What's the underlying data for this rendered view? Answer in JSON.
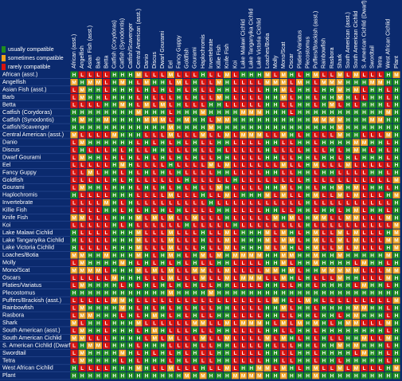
{
  "legend": [
    {
      "label": "usually compatible",
      "color": "#1f8d1f"
    },
    {
      "label": "sometimes compatible",
      "color": "#f0a21e"
    },
    {
      "label": "rarely compatible",
      "color": "#d9140f"
    }
  ],
  "cell_colors": {
    "H": "#1f8d1f",
    "M": "#f0a21e",
    "L": "#d9140f"
  },
  "columns": [
    "African (asst.)",
    "Angelfish",
    "Asian Fish (asst.)",
    "Barb",
    "Betta",
    "Catfish (Corydoras)",
    "Catfish (Synodontis)",
    "Catfish/Scavenger",
    "Central American (asst.)",
    "Danio",
    "Discus",
    "Dwarf Gourami",
    "Eel",
    "Fancy Guppy",
    "Goldfish",
    "Gourami",
    "Haplochromis",
    "Invertebrate",
    "Killie Fish",
    "Knife Fish",
    "Koi",
    "Lake Malawi Cichlid",
    "Lake Tanganyika Cichlid",
    "Lake Victoria Cichlid",
    "Loaches/Botia",
    "Molly",
    "Mono/Scat",
    "Oscar",
    "Platies/Variatus",
    "Plecostomus",
    "Puffers/Brackish (asst.)",
    "Rainbowfish",
    "Rasbora",
    "Shark",
    "South American (asst.)",
    "South American Cichlid",
    "S. American Cichlid (Dwarf)",
    "Swordtail",
    "Tetra",
    "West African Cichlid",
    "Plant"
  ],
  "rows": [
    "African (asst.)",
    "Angelfish",
    "Asian Fish (asst.)",
    "Barb",
    "Betta",
    "Catfish (Corydoras)",
    "Catfish (Synodontis)",
    "Catfish/Scavenger",
    "Central American (asst.)",
    "Danio",
    "Discus",
    "Dwarf Gourami",
    "Eel",
    "Fancy Guppy",
    "Goldfish",
    "Gourami",
    "Haplochromis",
    "Invertebrate",
    "Killie Fish",
    "Knife Fish",
    "Koi",
    "Lake Malawi Cichlid",
    "Lake Tanganyika Cichlid",
    "Lake Victoria Cichlid",
    "Loaches/Botia",
    "Molly",
    "Mono/Scat",
    "Oscars",
    "Platies/Variatus",
    "Plecostomus",
    "Puffers/Brackish (asst.)",
    "Rainbowfish",
    "Rasbora",
    "Shark",
    "South American (asst.)",
    "South American Cichlid",
    "S. American Cichlid (Dwarf)",
    "Swordtail",
    "Tetra",
    "West African Cichlid",
    "Plant"
  ],
  "grid": [
    "HLLLLHHHMLLLMLLLHLLMLHHHMLMHLHMLLMLMLLLHM",
    "MHMMLHMHLMHHLMLHLLMHLLLLMMMLMHLMMMHHHMMHH",
    "LMHHLHHHLHLHLHLHLLHHLLLLHHMLHHLHHMHMLHHLH",
    "LMHHLHHHLHLLLHLHLLMHLLLLHHMLHHLHHMHLLHHLH",
    "LLLLHHMHLMLMLHLLLHHLLLLLHHLLHHLHMLHLHHHLH",
    "HHHHHHHHMHHHLHHHMHHHHMMMHHHLHHHHHHHHHHHMH",
    "HMHHMHHHHMMMLHMHHLMMHHHHHHHHHHMMMMHHHMMHH",
    "HHHHHHHHHHHHMHHHHMHHHHHHHHHHHHHHHMHHHHHHH",
    "MLLLLMHHHLLLMLLLMLLMLMMMLLMHLHLLLMHHLLLMH",
    "LMHHHHHHLHLHLHLHLLHHLLLLHHLLHHLHHHHMMHHLH",
    "LHLLLHLHLLHHLLLHLLHLLLLLHLLLLHLLHLHMHLHLH",
    "LMHHLHLHLHLHLHLHLLHHLLLLHHLLHHLHHLHLHHHLH",
    "LLLLLHMHLLLLHLLLLMLMLLLLLLMLLHMLLLMLLLLLH",
    "LLMLHHLHLHLHLHLLLLHHLLLLHHLLHHLHHLLLLHHLH",
    "LLLLLHLHLLLLLLHLLLLLHLLLLLLLLHLLLLLLLLLLM",
    "LMHHLHHHLHLHLHLHLLMHLLLLHHMLHHLHHMHMLHHLH",
    "HLLLLHHHLLLLMLLLHLLMLHHHMLMLLHMLLMLMLLLHM",
    "LLLLMHLHLLLLLLLLLHLLLLLLLLLLLHLLLLLLLLLLH",
    "LLLLHHLHLHLHLHLLLLHHLLLLHHLLHHLHHLHMLHHLH",
    "MMLLLHHHMLMLMLLMLLLHLLLLLMHMLHMMLLMMLLLMH",
    "LLLLLHLHLLLLLLHLLLLLHLLLLLLLLHLLLLLLLLLLM",
    "HLLLLHHHMLLLMLLLHLLMLHHHMLMHLHMLLMLMLLLHM",
    "HLLLLHHHMLLLMLLLHLLMLHHHMLMMLHMLLMLMLLLMM",
    "HLLLLHHHMLLLMLLLHLLMLHHHMLMHLHMLLMLMLLLHM",
    "MMHHMHHHMHLHMHLHMLMHMMMMHHMMHHMHHMHHHHHMH",
    "LMHHHHMHLHLHLHLHLLHHLLLLHHMLHHMHHHHLMHHLH",
    "MMMMLHHHMLMLMLLMMLLMLLLLMMHMLHHMMMMMLLLMM",
    "LLLLLMHHHLLLMLLLMLLMLMMMLLMHLHLLLMHHLLLMH",
    "LMHHHHLHLHLHLHLHLLHHLLLLHHLLHHLHHHHLMHHLH",
    "HHHHHHHHHHHHMHHHHMHHHHHHHHHHHHHHHHHHHHHHH",
    "LLLLLMMHLLLLLLLLLLLLLLLLLMHLLMHLLLLLLLLLM",
    "LMHHHHMHLHLHLHLHLLHHLLLLHHMLHHLHHHHMMHHLH",
    "LMMHHHLHLHMHLHLHLLHHLLLLHHLLHHLHHLHMHHHLH",
    "MLHHLHHHMLLLLLLMMLLMLMMMHLMLMHMHLHMMLLLMH",
    "LMHHLHHHLHMHLLLHLLHHLLLLHHLLHHLHHHHHHHHLH",
    "MMLLLHHHHLMLMLLLMLLMLLLLMLMHLHLHLLHHMLLMH",
    "LHMMLHHHLHHHLLLHLLHHLLLLHLLLHHLHHMHMHHHLH",
    "LMHHHHMHLHLHLHLHLLHHLLLLHHLLHHLHHHHLMHHLH",
    "LMHHHHLHLHHHLHLHLLHHLLLLHHLLHHLHHLHHHHHLH",
    "HLLLLHHHMHLLMLLLHLLMLHHMMLMHLHMLLMLMLLLHM",
    "HHHHHHHHHHHHHHMHMHHHMMMMHHMHHHMHHHHHHHHHH"
  ]
}
